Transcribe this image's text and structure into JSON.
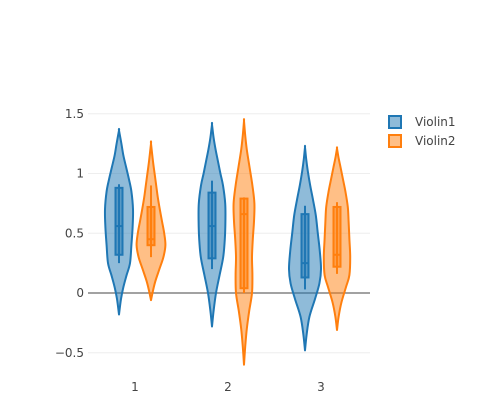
{
  "chart_data": {
    "type": "violin",
    "categories": [
      "1",
      "2",
      "3"
    ],
    "y_ticks": [
      "1.5",
      "1",
      "0.5",
      "0",
      "−0.5"
    ],
    "y_tick_values": [
      1.5,
      1,
      0.5,
      0,
      -0.5
    ],
    "ylim": [
      -0.72,
      1.65
    ],
    "grid": true,
    "zero_line": true,
    "legend_position": "top-right",
    "series": [
      {
        "name": "Violin1",
        "color": "#1f77b4",
        "violins": [
          {
            "category": "1",
            "min": -0.18,
            "max": 1.36,
            "q1": 0.32,
            "median": 0.56,
            "q3": 0.88,
            "whisker_low": 0.25,
            "whisker_high": 0.91,
            "density": [
              [
                -0.18,
                0.0
              ],
              [
                -0.05,
                0.1
              ],
              [
                0.05,
                0.22
              ],
              [
                0.15,
                0.38
              ],
              [
                0.25,
                0.55
              ],
              [
                0.4,
                0.62
              ],
              [
                0.55,
                0.68
              ],
              [
                0.7,
                0.7
              ],
              [
                0.85,
                0.62
              ],
              [
                0.95,
                0.5
              ],
              [
                1.05,
                0.36
              ],
              [
                1.15,
                0.22
              ],
              [
                1.25,
                0.12
              ],
              [
                1.36,
                0.0
              ]
            ]
          },
          {
            "category": "2",
            "min": -0.28,
            "max": 1.41,
            "q1": 0.29,
            "median": 0.56,
            "q3": 0.84,
            "whisker_low": 0.2,
            "whisker_high": 0.94,
            "density": [
              [
                -0.28,
                0.0
              ],
              [
                -0.15,
                0.08
              ],
              [
                0.0,
                0.2
              ],
              [
                0.15,
                0.38
              ],
              [
                0.3,
                0.56
              ],
              [
                0.45,
                0.64
              ],
              [
                0.6,
                0.67
              ],
              [
                0.75,
                0.66
              ],
              [
                0.9,
                0.55
              ],
              [
                1.0,
                0.42
              ],
              [
                1.1,
                0.3
              ],
              [
                1.2,
                0.18
              ],
              [
                1.3,
                0.08
              ],
              [
                1.41,
                0.0
              ]
            ]
          },
          {
            "category": "3",
            "min": -0.48,
            "max": 1.22,
            "q1": 0.13,
            "median": 0.25,
            "q3": 0.66,
            "whisker_low": 0.03,
            "whisker_high": 0.73,
            "density": [
              [
                -0.48,
                0.0
              ],
              [
                -0.35,
                0.08
              ],
              [
                -0.2,
                0.22
              ],
              [
                -0.05,
                0.5
              ],
              [
                0.08,
                0.72
              ],
              [
                0.2,
                0.8
              ],
              [
                0.35,
                0.74
              ],
              [
                0.5,
                0.64
              ],
              [
                0.65,
                0.54
              ],
              [
                0.78,
                0.4
              ],
              [
                0.9,
                0.26
              ],
              [
                1.02,
                0.14
              ],
              [
                1.12,
                0.06
              ],
              [
                1.22,
                0.0
              ]
            ]
          }
        ]
      },
      {
        "name": "Violin2",
        "color": "#ff7f0e",
        "violins": [
          {
            "category": "1",
            "min": -0.06,
            "max": 1.25,
            "q1": 0.4,
            "median": 0.45,
            "q3": 0.72,
            "whisker_low": 0.3,
            "whisker_high": 0.9,
            "density": [
              [
                -0.06,
                0.0
              ],
              [
                0.02,
                0.1
              ],
              [
                0.1,
                0.22
              ],
              [
                0.2,
                0.42
              ],
              [
                0.3,
                0.62
              ],
              [
                0.4,
                0.72
              ],
              [
                0.5,
                0.66
              ],
              [
                0.6,
                0.55
              ],
              [
                0.7,
                0.44
              ],
              [
                0.8,
                0.34
              ],
              [
                0.9,
                0.26
              ],
              [
                1.0,
                0.18
              ],
              [
                1.1,
                0.1
              ],
              [
                1.25,
                0.0
              ]
            ]
          },
          {
            "category": "2",
            "min": -0.6,
            "max": 1.44,
            "q1": 0.04,
            "median": 0.66,
            "q3": 0.79,
            "whisker_low": 0.0,
            "whisker_high": 0.8,
            "density": [
              [
                -0.6,
                0.0
              ],
              [
                -0.45,
                0.06
              ],
              [
                -0.3,
                0.14
              ],
              [
                -0.15,
                0.26
              ],
              [
                0.0,
                0.4
              ],
              [
                0.15,
                0.42
              ],
              [
                0.3,
                0.4
              ],
              [
                0.45,
                0.44
              ],
              [
                0.6,
                0.5
              ],
              [
                0.75,
                0.52
              ],
              [
                0.9,
                0.42
              ],
              [
                1.05,
                0.28
              ],
              [
                1.2,
                0.14
              ],
              [
                1.32,
                0.06
              ],
              [
                1.44,
                0.0
              ]
            ]
          },
          {
            "category": "3",
            "min": -0.31,
            "max": 1.21,
            "q1": 0.22,
            "median": 0.32,
            "q3": 0.72,
            "whisker_low": 0.16,
            "whisker_high": 0.76,
            "density": [
              [
                -0.31,
                0.0
              ],
              [
                -0.2,
                0.08
              ],
              [
                -0.08,
                0.22
              ],
              [
                0.05,
                0.45
              ],
              [
                0.15,
                0.62
              ],
              [
                0.3,
                0.66
              ],
              [
                0.45,
                0.62
              ],
              [
                0.6,
                0.58
              ],
              [
                0.72,
                0.54
              ],
              [
                0.85,
                0.42
              ],
              [
                0.95,
                0.3
              ],
              [
                1.05,
                0.18
              ],
              [
                1.13,
                0.08
              ],
              [
                1.21,
                0.0
              ]
            ]
          }
        ]
      }
    ]
  }
}
